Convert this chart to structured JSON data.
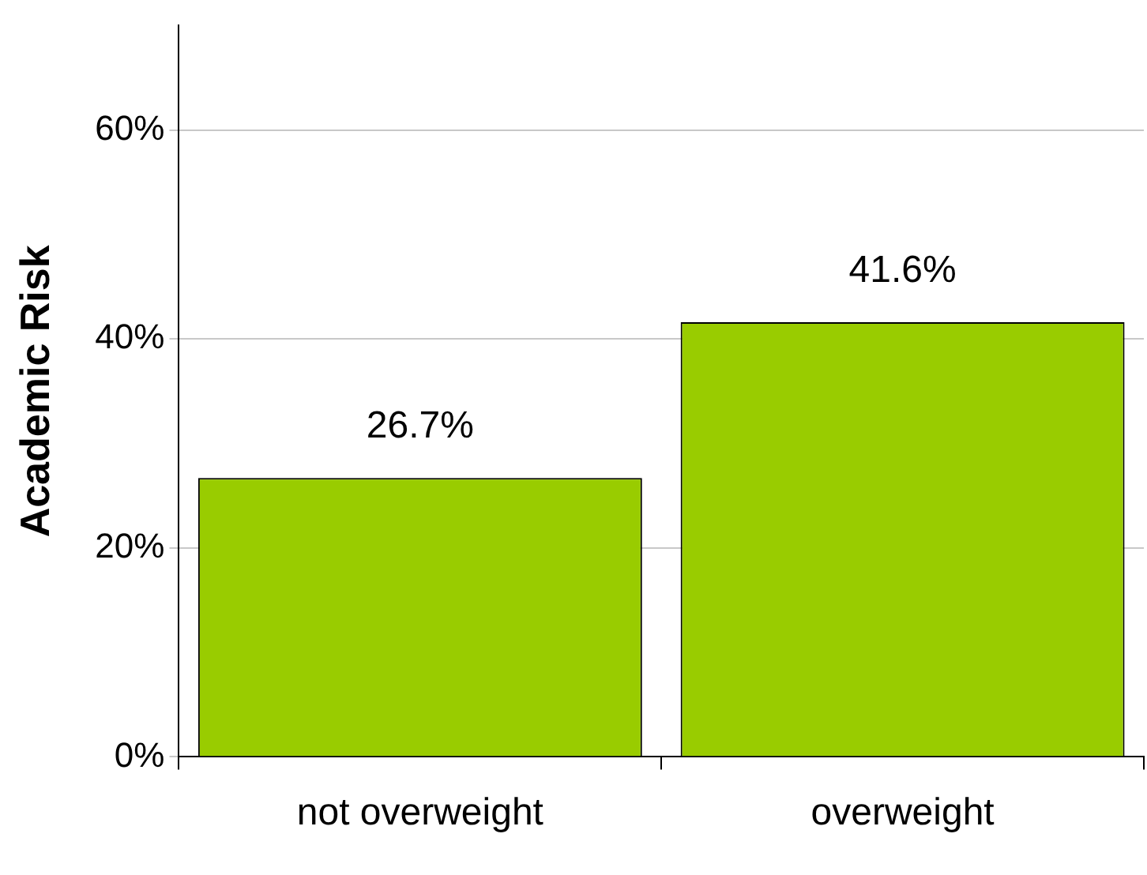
{
  "chart_data": {
    "type": "bar",
    "ylabel": "Academic Risk",
    "categories": [
      "not overweight",
      "overweight"
    ],
    "values": [
      26.7,
      41.6
    ],
    "color": "#99cc00",
    "value_labels": [
      "26.7%",
      "41.6%"
    ],
    "ylim": [
      0,
      70
    ],
    "yticks": [
      {
        "value": 0,
        "label": "0%"
      },
      {
        "value": 20,
        "label": "20%"
      },
      {
        "value": 40,
        "label": "40%"
      },
      {
        "value": 60,
        "label": "60%"
      }
    ],
    "grid": "y",
    "legend": false
  }
}
